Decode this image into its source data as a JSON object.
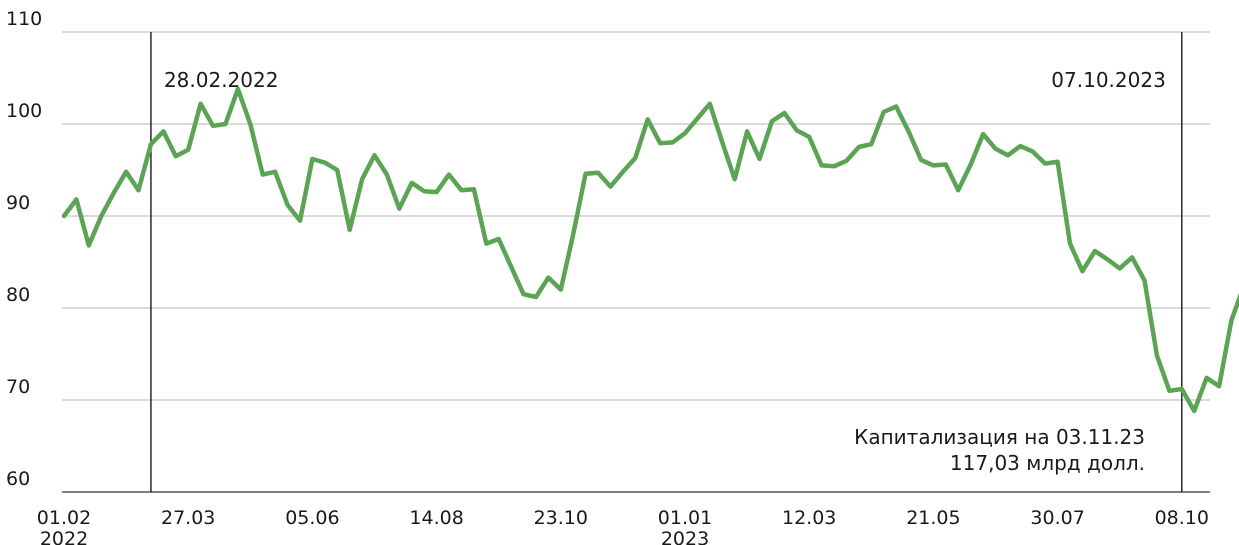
{
  "chart_data": {
    "type": "line",
    "title": "",
    "xlabel": "",
    "ylabel": "",
    "ylim": [
      60,
      110
    ],
    "yticks": [
      60,
      70,
      80,
      90,
      100,
      110
    ],
    "grid": "horizontal",
    "line_color": "#5aa454",
    "x_tick_labels": [
      {
        "label": "01.02",
        "sub": "2022",
        "index": 0
      },
      {
        "label": "27.03",
        "sub": "",
        "index": 10
      },
      {
        "label": "05.06",
        "sub": "",
        "index": 20
      },
      {
        "label": "14.08",
        "sub": "",
        "index": 30
      },
      {
        "label": "23.10",
        "sub": "",
        "index": 40
      },
      {
        "label": "01.01",
        "sub": "2023",
        "index": 50
      },
      {
        "label": "12.03",
        "sub": "",
        "index": 60
      },
      {
        "label": "21.05",
        "sub": "",
        "index": 70
      },
      {
        "label": "30.07",
        "sub": "",
        "index": 80
      },
      {
        "label": "08.10",
        "sub": "",
        "index": 90
      }
    ],
    "markers": [
      {
        "label": "28.02.2022",
        "index": 7
      },
      {
        "label": "07.10.2023",
        "index": 90
      }
    ],
    "annotation": [
      "Капитализация на 03.11.23",
      "117,03 млрд долл."
    ],
    "series": [
      {
        "values": [
          90.0,
          91.8,
          86.8,
          90.0,
          92.5,
          94.8,
          92.8,
          97.8,
          99.2,
          96.5,
          97.2,
          102.2,
          99.8,
          100.0,
          103.8,
          100.0,
          94.5,
          94.8,
          91.2,
          89.5,
          96.2,
          95.8,
          95.0,
          88.5,
          94.0,
          96.6,
          94.5,
          90.8,
          93.6,
          92.7,
          92.6,
          94.5,
          92.8,
          92.9,
          87.0,
          87.5,
          84.5,
          81.5,
          81.2,
          83.3,
          82.0,
          88.0,
          94.6,
          94.7,
          93.2,
          94.8,
          96.3,
          100.5,
          97.9,
          98.0,
          99.0,
          100.6,
          102.2,
          98.0,
          94.0,
          99.2,
          96.2,
          100.3,
          101.2,
          99.3,
          98.6,
          95.5,
          95.4,
          96.0,
          97.5,
          97.8,
          101.3,
          101.9,
          99.2,
          96.1,
          95.5,
          95.6,
          92.8,
          95.6,
          98.9,
          97.3,
          96.6,
          97.6,
          97.0,
          95.7,
          95.9,
          87.0,
          84.0,
          86.2,
          85.3,
          84.3,
          85.5,
          83.0,
          74.8,
          71.0,
          71.2,
          68.8,
          72.4,
          71.5,
          78.7,
          82.4
        ]
      }
    ]
  }
}
